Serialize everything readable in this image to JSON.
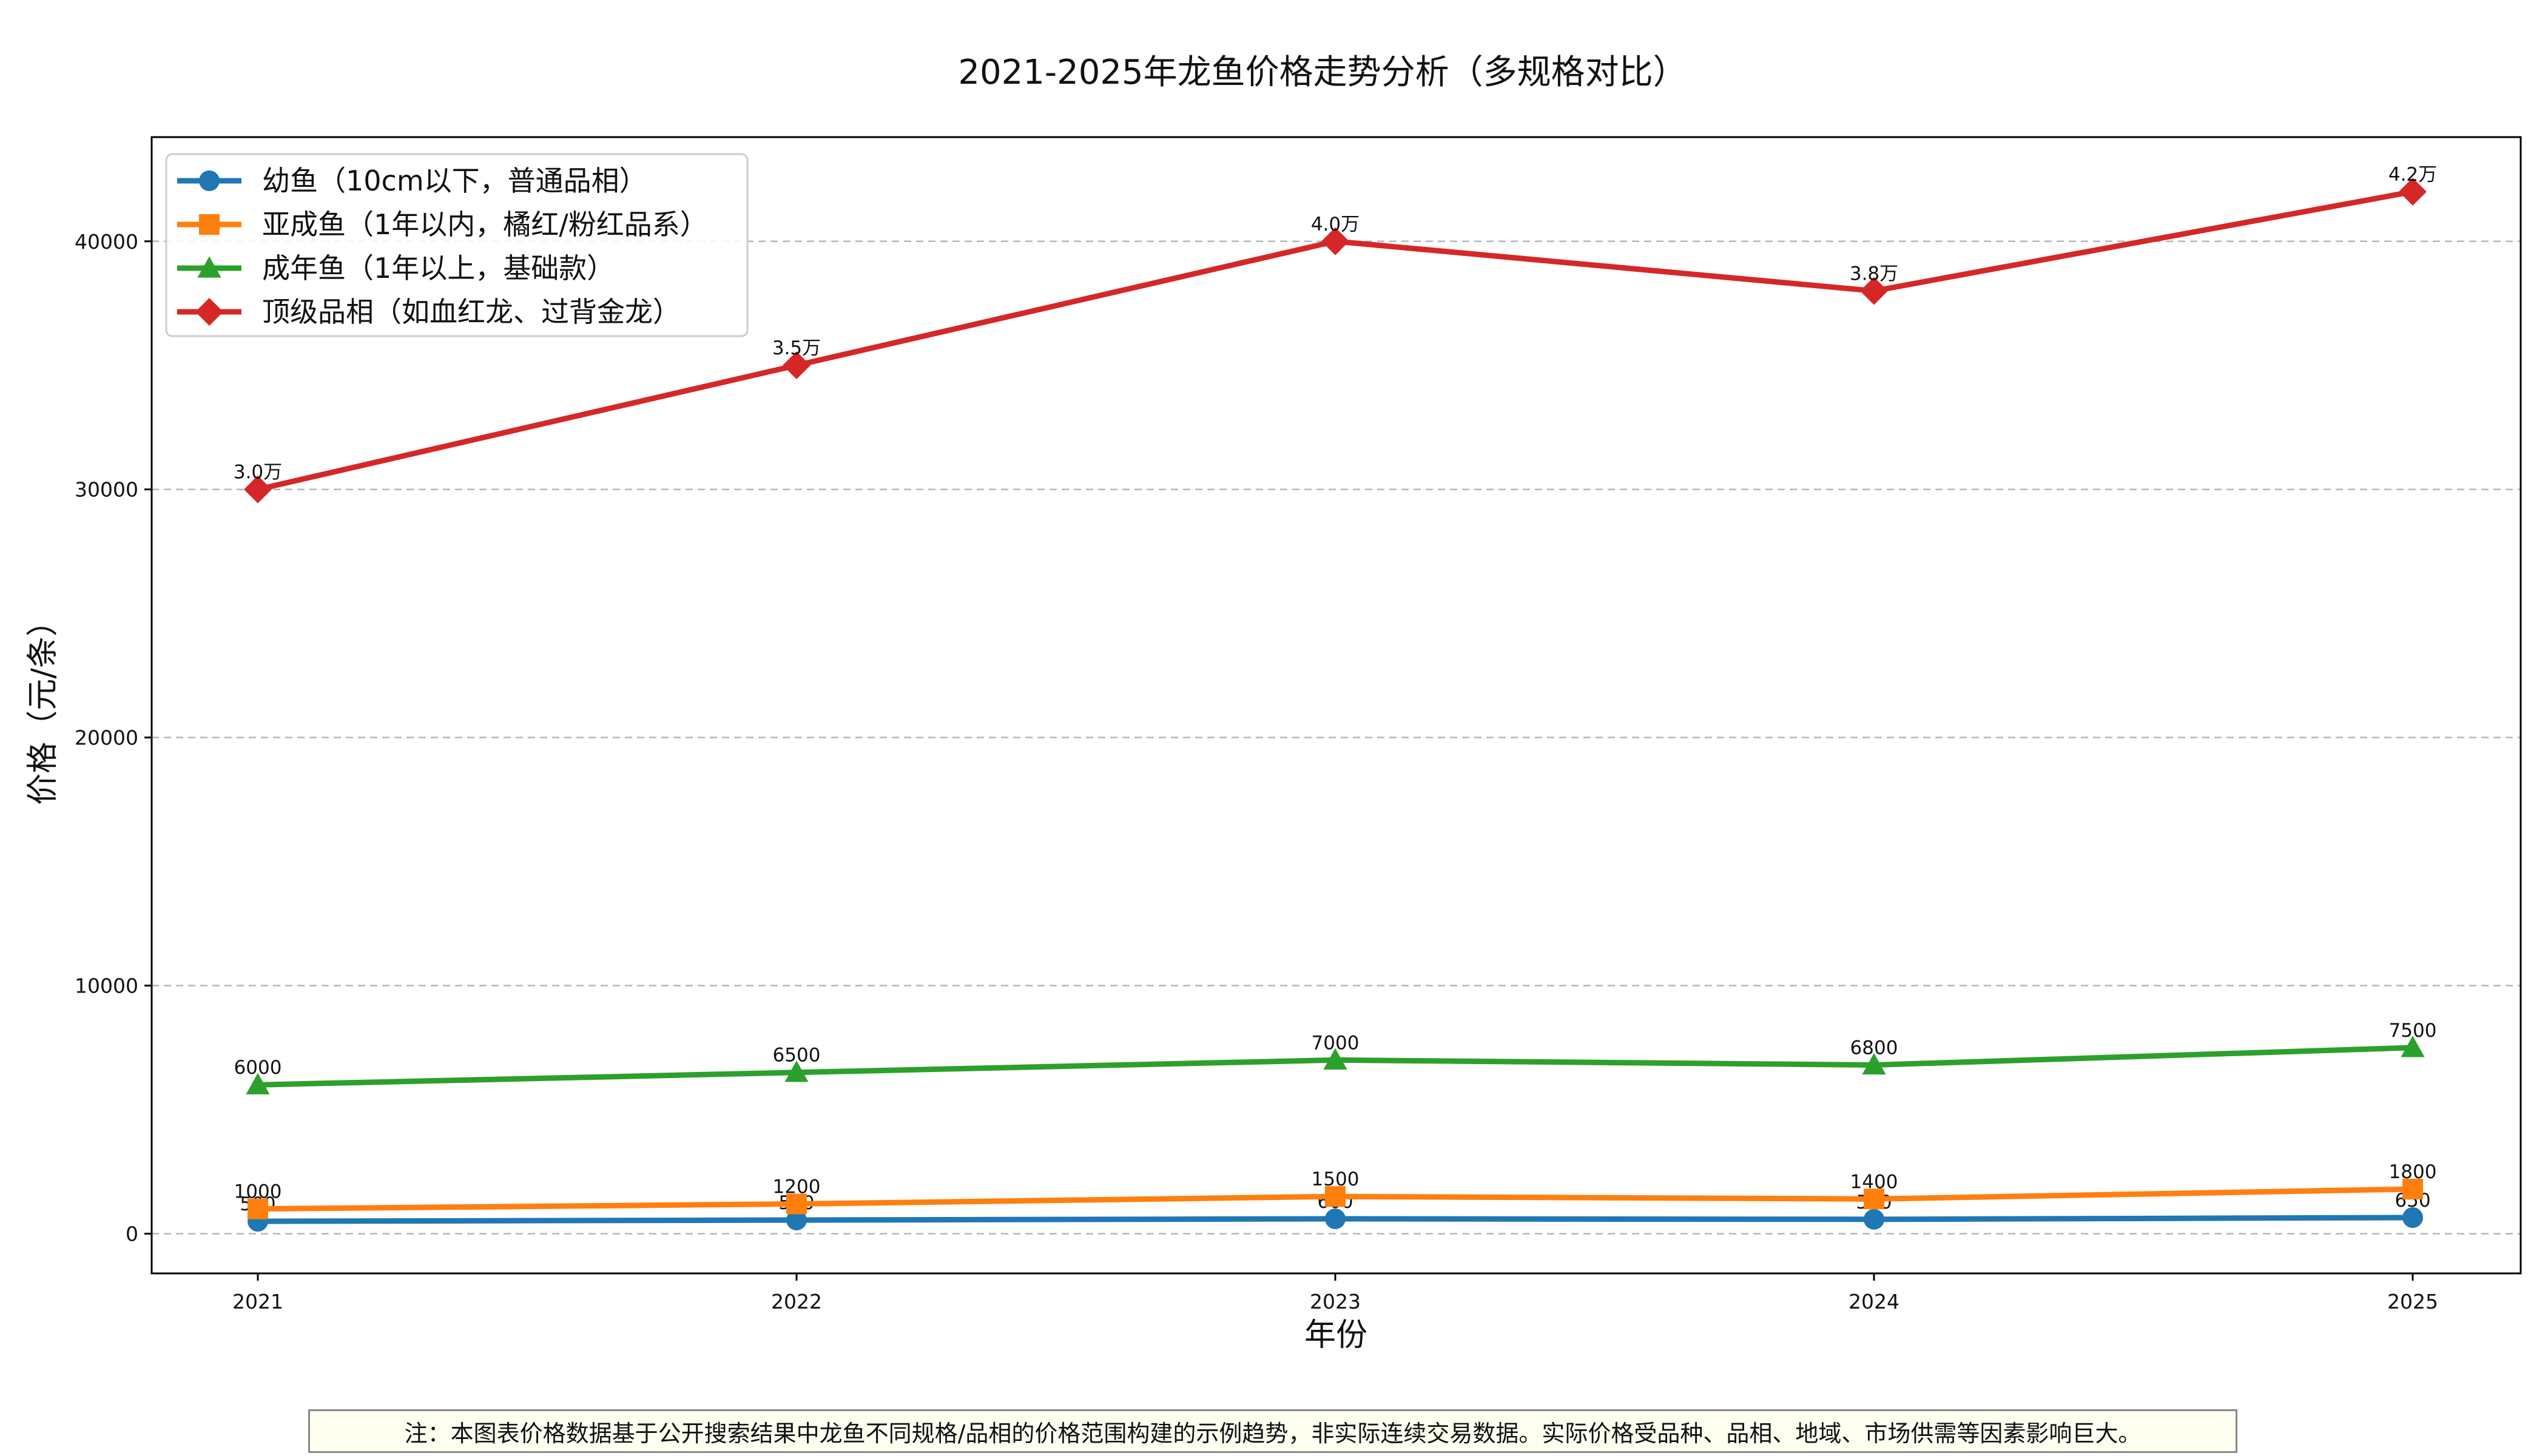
{
  "chart_data": {
    "type": "line",
    "title": "2021-2025年龙鱼价格走势分析（多规格对比）",
    "xlabel": "年份",
    "ylabel": "价格（元/条）",
    "categories": [
      "2021",
      "2022",
      "2023",
      "2024",
      "2025"
    ],
    "ylim": [
      -1600,
      44200
    ],
    "yticks": [
      0,
      10000,
      20000,
      30000,
      40000
    ],
    "ytick_labels": [
      "0",
      "10000",
      "20000",
      "30000",
      "40000"
    ],
    "grid": "y-dashed",
    "legend_position": "top-left",
    "series": [
      {
        "name": "幼鱼（10cm以下，普通品相）",
        "values": [
          500,
          550,
          600,
          580,
          650
        ],
        "labels": [
          "500",
          "550",
          "600",
          "580",
          "650"
        ],
        "color": "#1f77b4",
        "marker": "circle"
      },
      {
        "name": "亚成鱼（1年以内，橘红/粉红品系）",
        "values": [
          1000,
          1200,
          1500,
          1400,
          1800
        ],
        "labels": [
          "1000",
          "1200",
          "1500",
          "1400",
          "1800"
        ],
        "color": "#ff7f0e",
        "marker": "square"
      },
      {
        "name": "成年鱼（1年以上，基础款）",
        "values": [
          6000,
          6500,
          7000,
          6800,
          7500
        ],
        "labels": [
          "6000",
          "6500",
          "7000",
          "6800",
          "7500"
        ],
        "color": "#2ca02c",
        "marker": "triangle"
      },
      {
        "name": "顶级品相（如血红龙、过背金龙）",
        "values": [
          30000,
          35000,
          40000,
          38000,
          42000
        ],
        "labels": [
          "3.0万",
          "3.5万",
          "4.0万",
          "3.8万",
          "4.2万"
        ],
        "color": "#d62728",
        "marker": "diamond"
      }
    ]
  },
  "note": "注：本图表价格数据基于公开搜索结果中龙鱼不同规格/品相的价格范围构建的示例趋势，非实际连续交易数据。实际价格受品种、品相、地域、市场供需等因素影响巨大。"
}
